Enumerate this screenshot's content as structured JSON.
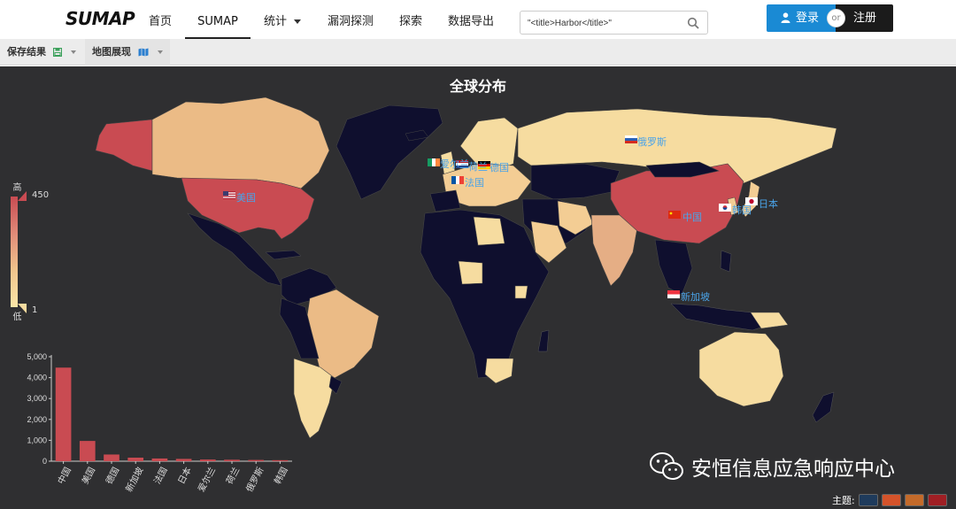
{
  "nav": {
    "logo": "SUMAP",
    "items": [
      {
        "label": "首页"
      },
      {
        "label": "SUMAP"
      },
      {
        "label": "统计"
      },
      {
        "label": "漏洞探测"
      },
      {
        "label": "探索"
      },
      {
        "label": "数据导出"
      }
    ],
    "search_value": "\"<title>Harbor</title>\"",
    "login_label": "登录",
    "or_label": "or",
    "register_label": "注册"
  },
  "toolbar": {
    "save_label": "保存结果",
    "map_view_label": "地图展现"
  },
  "map": {
    "title": "全球分布",
    "legend": {
      "high_label": "高",
      "low_label": "低",
      "max": "450",
      "min": "1"
    },
    "labels": [
      {
        "name": "俄罗斯"
      },
      {
        "name": "美国"
      },
      {
        "name": "中国"
      },
      {
        "name": "日本"
      },
      {
        "name": "韩国"
      },
      {
        "name": "新加坡"
      },
      {
        "name": "德国"
      },
      {
        "name": "荷兰"
      },
      {
        "name": "法国"
      },
      {
        "name": "爱尔兰"
      }
    ],
    "colors": {
      "high": "#c94b52",
      "mid": "#e9b383",
      "low": "#f6dca0",
      "none": "#0f0f2e",
      "background": "#2f2f31"
    }
  },
  "chart_data": {
    "type": "bar",
    "categories": [
      "中国",
      "美国",
      "德国",
      "新加坡",
      "法国",
      "日本",
      "爱尔兰",
      "荷兰",
      "俄罗斯",
      "韩国"
    ],
    "values": [
      4480,
      970,
      320,
      170,
      130,
      110,
      80,
      70,
      60,
      50
    ],
    "ylim": [
      0,
      5000
    ],
    "yticks": [
      "0",
      "1,000",
      "2,000",
      "3,000",
      "4,000",
      "5,000"
    ],
    "title": "",
    "xlabel": "",
    "ylabel": ""
  },
  "watermark": {
    "text": "安恒信息应急响应中心"
  },
  "theme": {
    "label": "主题:",
    "swatches": [
      "#1f3b5c",
      "#d5532a",
      "#c46a2a",
      "#a01f24"
    ]
  }
}
